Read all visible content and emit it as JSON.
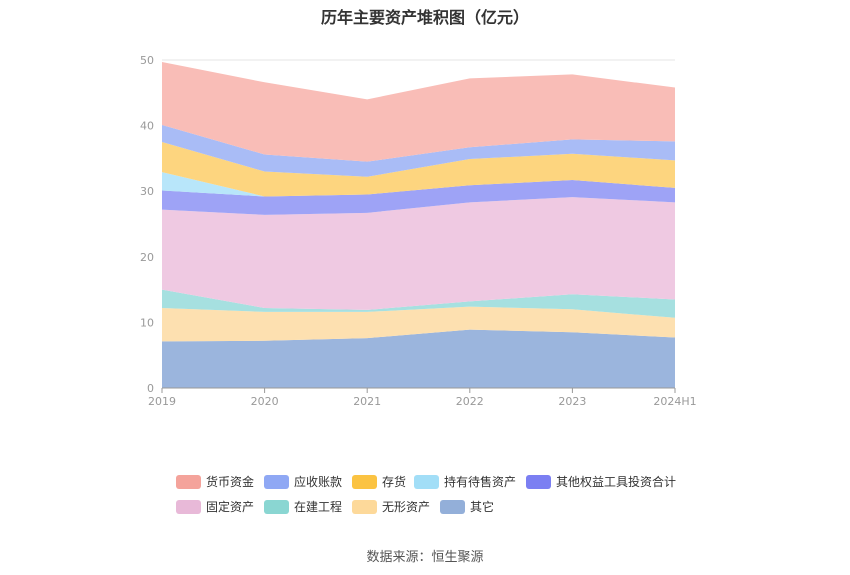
{
  "title": "历年主要资产堆积图（亿元）",
  "source": "数据来源：恒生聚源",
  "chart_data": {
    "type": "area",
    "stacked": true,
    "title": "历年主要资产堆积图（亿元）",
    "categories": [
      "2019",
      "2020",
      "2021",
      "2022",
      "2023",
      "2024H1"
    ],
    "ylim": [
      0,
      50
    ],
    "yticks": [
      0,
      10,
      20,
      30,
      40,
      50
    ],
    "grid": true,
    "legend_position": "bottom",
    "series": [
      {
        "name": "其它",
        "color": "#9bb5dd",
        "values": [
          7.1,
          7.2,
          7.6,
          8.9,
          8.5,
          7.7
        ]
      },
      {
        "name": "无形资产",
        "color": "#fde0b0",
        "values": [
          5.1,
          4.4,
          4.0,
          3.5,
          3.5,
          3.0
        ]
      },
      {
        "name": "在建工程",
        "color": "#a6e0e0",
        "values": [
          2.8,
          0.6,
          0.3,
          0.8,
          2.3,
          2.8
        ]
      },
      {
        "name": "固定资产",
        "color": "#efc9e2",
        "values": [
          12.2,
          14.2,
          14.8,
          15.1,
          14.8,
          14.8
        ]
      },
      {
        "name": "其他权益工具投资合计",
        "color": "#9ea3f6",
        "values": [
          2.9,
          2.8,
          2.8,
          2.6,
          2.6,
          2.2
        ]
      },
      {
        "name": "持有待售资产",
        "color": "#b8e6fa",
        "values": [
          2.8,
          0.0,
          0.0,
          0.0,
          0.0,
          0.0
        ]
      },
      {
        "name": "存货",
        "color": "#fdd57f",
        "values": [
          4.6,
          3.8,
          2.7,
          4.0,
          4.0,
          4.2
        ]
      },
      {
        "name": "应收账款",
        "color": "#a9bcf6",
        "values": [
          2.6,
          2.6,
          2.3,
          1.8,
          2.2,
          2.9
        ]
      },
      {
        "name": "货币资金",
        "color": "#f9bdb7",
        "values": [
          9.6,
          11.0,
          9.5,
          10.5,
          9.9,
          8.2
        ]
      }
    ]
  },
  "legend": [
    {
      "name": "货币资金",
      "color": "#f4a39b"
    },
    {
      "name": "应收账款",
      "color": "#8fa8f4"
    },
    {
      "name": "存货",
      "color": "#fbc342"
    },
    {
      "name": "持有待售资产",
      "color": "#a2def7"
    },
    {
      "name": "其他权益工具投资合计",
      "color": "#7b7ff2"
    },
    {
      "name": "固定资产",
      "color": "#e8b9d8"
    },
    {
      "name": "在建工程",
      "color": "#8ad6d2"
    },
    {
      "name": "无形资产",
      "color": "#fdd99a"
    },
    {
      "name": "其它",
      "color": "#93afd9"
    }
  ]
}
